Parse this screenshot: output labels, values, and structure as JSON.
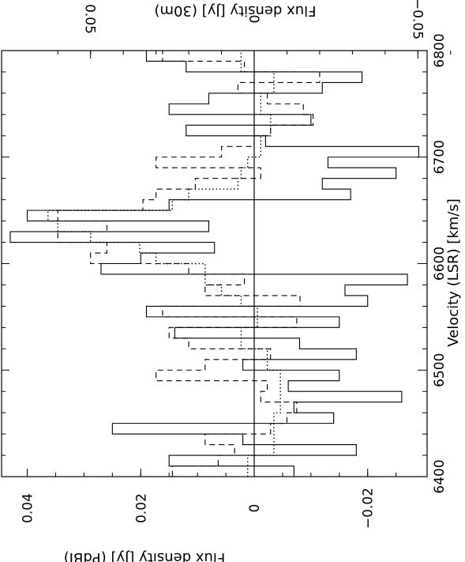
{
  "chart_data": {
    "type": "line",
    "orientation": "rotated-90",
    "xlabel": "Velocity (LSR) [km/s]",
    "ylabel_left": "Flux density [Jy] (PdBI)",
    "ylabel_right": "Flux density [Jy] (30m)",
    "xlim": [
      6400,
      6800
    ],
    "ylim_pdbi": [
      -0.03,
      0.045
    ],
    "ylim_30m": [
      -0.065,
      0.065
    ],
    "x_ticks": [
      "6400",
      "6500",
      "6600",
      "6700",
      "6800"
    ],
    "pdbi_ticks": [
      "0.04",
      "0.02",
      "0",
      "−0.02"
    ],
    "iram30m_ticks": [
      "0.05",
      "0",
      "−0.05"
    ],
    "zero_line": true,
    "series": [
      {
        "style": "solid",
        "x": [
          6400,
          6410,
          6420,
          6430,
          6440,
          6450,
          6460,
          6470,
          6480,
          6490,
          6500,
          6510,
          6520,
          6530,
          6540,
          6550,
          6560,
          6570,
          6580,
          6590,
          6600,
          6610,
          6620,
          6630,
          6640,
          6650,
          6660,
          6670,
          6680,
          6690,
          6700,
          6710,
          6720,
          6730,
          6740,
          6750,
          6760,
          6770,
          6780,
          6790,
          6800
        ],
        "y": [
          -0.007,
          0.015,
          -0.018,
          0.002,
          0.025,
          -0.014,
          -0.007,
          -0.026,
          -0.006,
          -0.015,
          0.002,
          -0.018,
          -0.008,
          0.014,
          -0.015,
          0.019,
          -0.02,
          -0.016,
          -0.027,
          0.027,
          0.02,
          0.007,
          0.043,
          0.008,
          0.04,
          0.015,
          -0.017,
          -0.012,
          -0.025,
          -0.013,
          -0.029,
          -0.002,
          0.012,
          -0.01,
          0.015,
          0.008,
          -0.012,
          -0.019,
          0.012,
          0.019,
          -0.014
        ]
      },
      {
        "style": "dashed",
        "x": [
          6400,
          6410,
          6420,
          6430,
          6440,
          6450,
          6460,
          6470,
          6480,
          6490,
          6500,
          6510,
          6520,
          6530,
          6540,
          6550,
          6560,
          6570,
          6580,
          6590,
          6600,
          6610,
          6620,
          6630,
          6640,
          6650,
          6660,
          6670,
          6680,
          6690,
          6700,
          6710,
          6720,
          6730,
          6740,
          6750,
          6760,
          6770,
          6780,
          6790,
          6800
        ],
        "y": [
          0.025,
          0.011,
          0.006,
          0.015,
          -0.005,
          -0.01,
          -0.013,
          -0.002,
          -0.004,
          0.03,
          0.015,
          -0.005,
          0.02,
          0.026,
          -0.013,
          0.028,
          -0.014,
          0.015,
          0.003,
          0.02,
          0.05,
          0.045,
          0.06,
          0.045,
          0.06,
          0.034,
          0.03,
          0.018,
          -0.002,
          0.03,
          0.01,
          0,
          -0.005,
          -0.018,
          -0.015,
          -0.004,
          0.005,
          -0.02,
          0.003,
          0.028,
          -0.015
        ]
      },
      {
        "style": "dotted",
        "x": [
          6400,
          6420,
          6440,
          6460,
          6480,
          6500,
          6520,
          6540,
          6560,
          6570,
          6580,
          6590,
          6600,
          6610,
          6620,
          6630,
          6640,
          6650,
          6660,
          6670,
          6680,
          6690,
          6700,
          6720,
          6740,
          6760,
          6780,
          6800
        ],
        "y": [
          0.002,
          -0.006,
          -0.006,
          -0.008,
          -0.008,
          -0.004,
          0.004,
          -0.001,
          0.004,
          0.01,
          0.015,
          0.015,
          0.03,
          0.035,
          0.05,
          0.06,
          0.063,
          0.025,
          0.02,
          0.005,
          0.004,
          0.002,
          -0.002,
          -0.005,
          -0.002,
          -0.006,
          0.004,
          -0.006
        ]
      }
    ]
  }
}
